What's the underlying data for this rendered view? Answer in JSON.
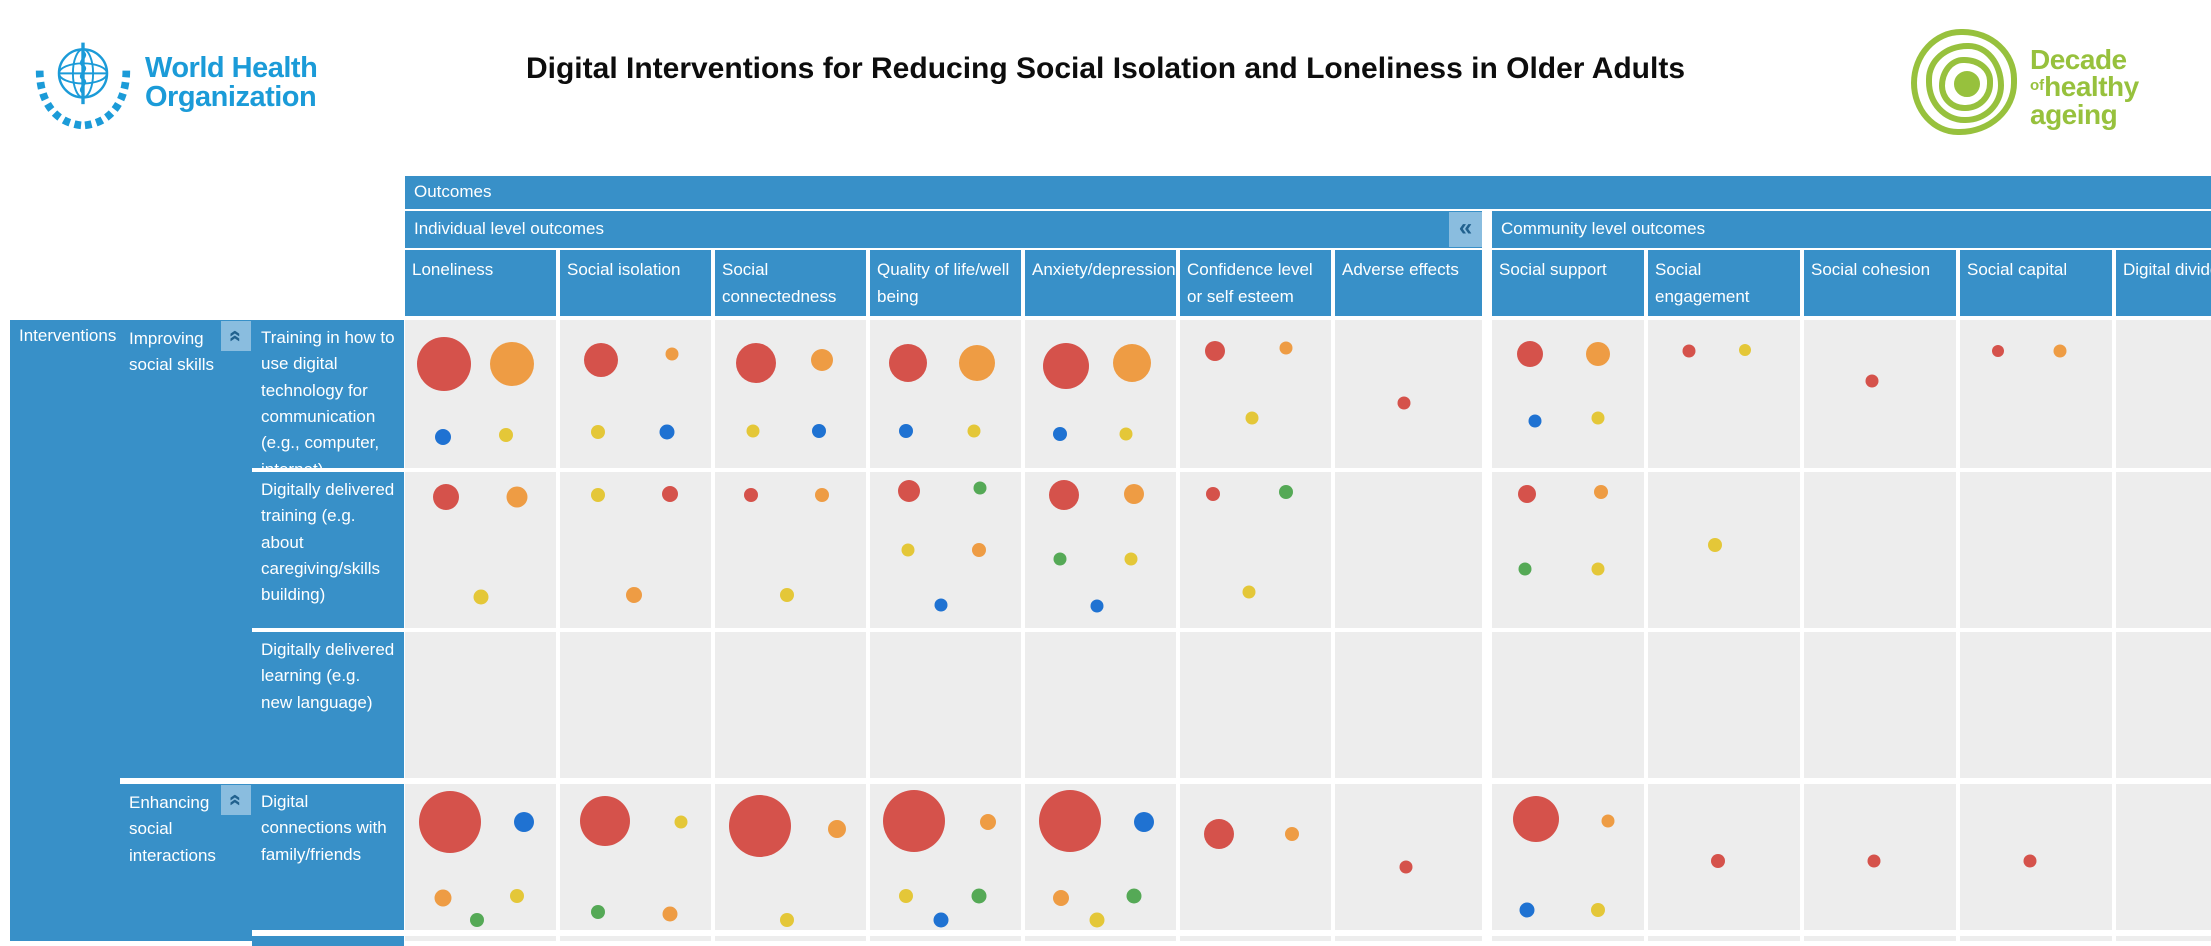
{
  "header": {
    "who_line1": "World Health",
    "who_line2": "Organization",
    "title": "Digital Interventions for Reducing Social Isolation and Loneliness in Older Adults",
    "decade": {
      "line1": "Decade",
      "of": "of",
      "line2": "healthy",
      "line3": "ageing"
    }
  },
  "colors": {
    "header_blue": "#3890c8",
    "collapse_bg": "#8abddf",
    "collapse_icon": "#21618e",
    "cell_gray": "#ededed",
    "who_blue": "#1b9bd8",
    "decade_green": "#97c13d",
    "bubble": {
      "red": "#d5524b",
      "orange": "#ee9c44",
      "yellow": "#e4c738",
      "blue": "#1f72d2",
      "green": "#55a956"
    }
  },
  "controls": {
    "collapse_columns_glyph": "«",
    "collapse_group_glyph": "«"
  },
  "chart_data": {
    "type": "heatmap",
    "title": "Digital Interventions for Reducing Social Isolation and Loneliness in Older Adults",
    "outcomes_label": "Outcomes",
    "axis_label": "Interventions",
    "column_groups": [
      {
        "label": "Individual level outcomes",
        "columns": [
          0,
          1,
          2,
          3,
          4,
          5,
          6
        ]
      },
      {
        "label": "Community level outcomes",
        "columns": [
          7,
          8,
          9,
          10,
          11
        ]
      }
    ],
    "columns": [
      "Loneliness",
      "Social isolation",
      "Social connectedness",
      "Quality of life/well being",
      "Anxiety/depression",
      "Confidence level or self esteem",
      "Adverse effects",
      "Social support",
      "Social engagement",
      "Social cohesion",
      "Social capital",
      "Digital divide"
    ],
    "bubble_format": "[color, diameter_px, x_pct_center, y_pct_center]",
    "row_groups": [
      {
        "label": "Improving social skills",
        "rows": [
          {
            "label": "Training in how to use digital technology for communication (e.g., computer, internet)",
            "bubbles": {
              "0": [
                [
                  "red",
                  54,
                  26,
                  30
                ],
                [
                  "orange",
                  44,
                  71,
                  30
                ],
                [
                  "blue",
                  16,
                  25,
                  79
                ],
                [
                  "yellow",
                  14,
                  67,
                  78
                ]
              ],
              "1": [
                [
                  "red",
                  34,
                  27,
                  27
                ],
                [
                  "orange",
                  13,
                  74,
                  23
                ],
                [
                  "yellow",
                  14,
                  25,
                  76
                ],
                [
                  "blue",
                  15,
                  71,
                  76
                ]
              ],
              "2": [
                [
                  "red",
                  40,
                  27,
                  29
                ],
                [
                  "orange",
                  22,
                  71,
                  27
                ],
                [
                  "yellow",
                  13,
                  25,
                  75
                ],
                [
                  "blue",
                  14,
                  69,
                  75
                ]
              ],
              "3": [
                [
                  "red",
                  38,
                  25,
                  29
                ],
                [
                  "orange",
                  36,
                  71,
                  29
                ],
                [
                  "blue",
                  14,
                  24,
                  75
                ],
                [
                  "yellow",
                  13,
                  69,
                  75
                ]
              ],
              "4": [
                [
                  "red",
                  46,
                  27,
                  31
                ],
                [
                  "orange",
                  38,
                  71,
                  29
                ],
                [
                  "blue",
                  14,
                  23,
                  77
                ],
                [
                  "yellow",
                  13,
                  67,
                  77
                ]
              ],
              "5": [
                [
                  "red",
                  20,
                  23,
                  21
                ],
                [
                  "orange",
                  13,
                  70,
                  19
                ],
                [
                  "yellow",
                  13,
                  48,
                  66
                ]
              ],
              "6": [
                [
                  "red",
                  13,
                  47,
                  56
                ]
              ],
              "7": [
                [
                  "red",
                  26,
                  25,
                  23
                ],
                [
                  "orange",
                  24,
                  70,
                  23
                ],
                [
                  "blue",
                  13,
                  28,
                  68
                ],
                [
                  "yellow",
                  13,
                  70,
                  66
                ]
              ],
              "8": [
                [
                  "red",
                  13,
                  27,
                  21
                ],
                [
                  "yellow",
                  12,
                  64,
                  20
                ]
              ],
              "9": [
                [
                  "red",
                  13,
                  45,
                  41
                ]
              ],
              "10": [
                [
                  "red",
                  12,
                  25,
                  21
                ],
                [
                  "orange",
                  13,
                  66,
                  21
                ]
              ]
            }
          },
          {
            "label": "Digitally delivered training (e.g. about caregiving/skills building)",
            "bubbles": {
              "0": [
                [
                  "red",
                  26,
                  27,
                  16
                ],
                [
                  "orange",
                  21,
                  74,
                  16
                ],
                [
                  "yellow",
                  15,
                  50,
                  80
                ]
              ],
              "1": [
                [
                  "yellow",
                  14,
                  25,
                  15
                ],
                [
                  "red",
                  16,
                  73,
                  14
                ],
                [
                  "orange",
                  16,
                  49,
                  79
                ]
              ],
              "2": [
                [
                  "red",
                  14,
                  24,
                  15
                ],
                [
                  "orange",
                  14,
                  71,
                  15
                ],
                [
                  "yellow",
                  14,
                  48,
                  79
                ]
              ],
              "3": [
                [
                  "red",
                  22,
                  26,
                  12
                ],
                [
                  "green",
                  13,
                  73,
                  10
                ],
                [
                  "yellow",
                  13,
                  25,
                  50
                ],
                [
                  "orange",
                  14,
                  72,
                  50
                ],
                [
                  "blue",
                  13,
                  47,
                  85
                ]
              ],
              "4": [
                [
                  "red",
                  30,
                  26,
                  15
                ],
                [
                  "orange",
                  20,
                  72,
                  14
                ],
                [
                  "green",
                  13,
                  23,
                  56
                ],
                [
                  "yellow",
                  13,
                  70,
                  56
                ],
                [
                  "blue",
                  13,
                  48,
                  86
                ]
              ],
              "5": [
                [
                  "red",
                  14,
                  22,
                  14
                ],
                [
                  "green",
                  14,
                  70,
                  13
                ],
                [
                  "yellow",
                  13,
                  46,
                  77
                ]
              ],
              "7": [
                [
                  "red",
                  18,
                  23,
                  14
                ],
                [
                  "orange",
                  14,
                  72,
                  13
                ],
                [
                  "green",
                  13,
                  22,
                  62
                ],
                [
                  "yellow",
                  13,
                  70,
                  62
                ]
              ],
              "8": [
                [
                  "yellow",
                  14,
                  44,
                  47
                ]
              ]
            }
          },
          {
            "label": "Digitally delivered learning (e.g. new language)",
            "bubbles": {}
          }
        ]
      },
      {
        "label": "Enhancing social interactions",
        "rows": [
          {
            "label": "Digital connections with family/friends",
            "bubbles": {
              "0": [
                [
                  "red",
                  62,
                  30,
                  26
                ],
                [
                  "blue",
                  20,
                  79,
                  26
                ],
                [
                  "orange",
                  17,
                  25,
                  78
                ],
                [
                  "yellow",
                  14,
                  74,
                  77
                ],
                [
                  "green",
                  14,
                  48,
                  93
                ]
              ],
              "1": [
                [
                  "red",
                  50,
                  30,
                  25
                ],
                [
                  "yellow",
                  13,
                  80,
                  26
                ],
                [
                  "green",
                  14,
                  25,
                  88
                ],
                [
                  "orange",
                  15,
                  73,
                  89
                ]
              ],
              "2": [
                [
                  "red",
                  62,
                  30,
                  29
                ],
                [
                  "orange",
                  18,
                  81,
                  31
                ],
                [
                  "yellow",
                  14,
                  48,
                  93
                ]
              ],
              "3": [
                [
                  "red",
                  62,
                  29,
                  25
                ],
                [
                  "orange",
                  16,
                  78,
                  26
                ],
                [
                  "yellow",
                  14,
                  24,
                  77
                ],
                [
                  "green",
                  15,
                  72,
                  77
                ],
                [
                  "blue",
                  15,
                  47,
                  93
                ]
              ],
              "4": [
                [
                  "red",
                  62,
                  30,
                  25
                ],
                [
                  "blue",
                  20,
                  79,
                  26
                ],
                [
                  "orange",
                  16,
                  24,
                  78
                ],
                [
                  "green",
                  15,
                  72,
                  77
                ],
                [
                  "yellow",
                  15,
                  48,
                  93
                ]
              ],
              "5": [
                [
                  "red",
                  30,
                  26,
                  34
                ],
                [
                  "orange",
                  14,
                  74,
                  34
                ]
              ],
              "6": [
                [
                  "red",
                  13,
                  48,
                  57
                ]
              ],
              "7": [
                [
                  "red",
                  46,
                  29,
                  24
                ],
                [
                  "orange",
                  13,
                  76,
                  25
                ],
                [
                  "blue",
                  15,
                  23,
                  86
                ],
                [
                  "yellow",
                  14,
                  70,
                  86
                ]
              ],
              "8": [
                [
                  "red",
                  14,
                  46,
                  53
                ]
              ],
              "9": [
                [
                  "red",
                  13,
                  46,
                  53
                ]
              ],
              "10": [
                [
                  "red",
                  13,
                  46,
                  53
                ]
              ]
            }
          },
          {
            "label": "",
            "bubbles": {}
          }
        ]
      }
    ]
  }
}
